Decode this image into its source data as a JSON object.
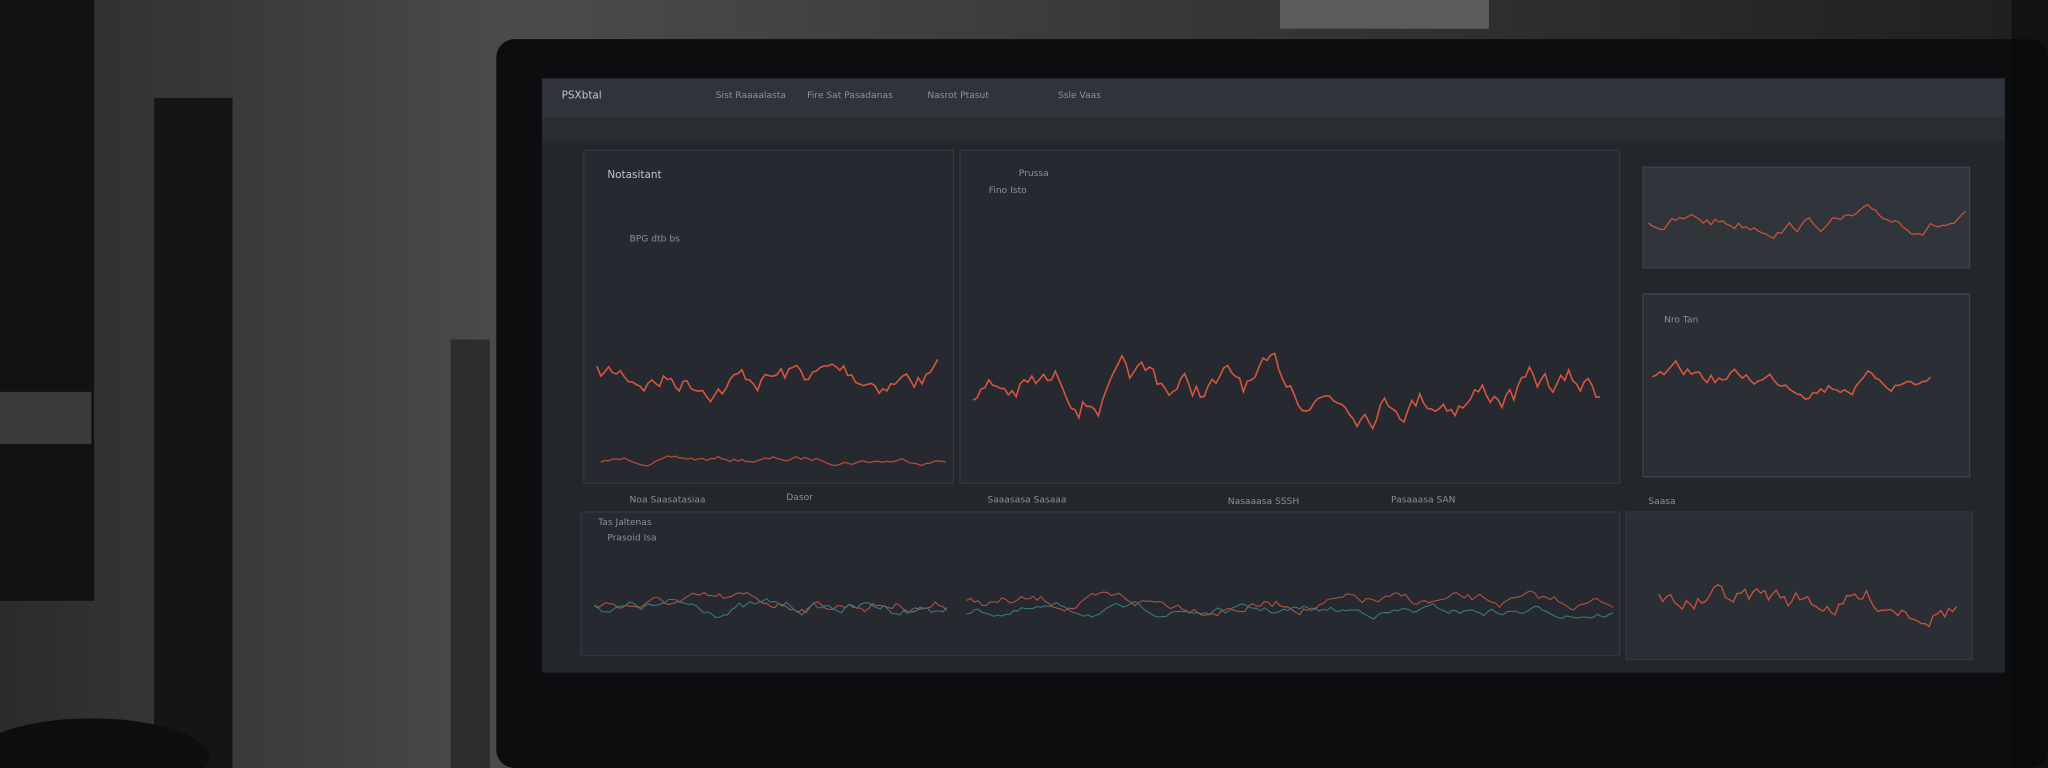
{
  "header": {
    "title": "PSXbtal",
    "tabs": [
      "Sist Raaaalasta",
      "Fire Sat Pasadanas",
      "Nasrot Ptasut",
      "Ssle Vaas"
    ]
  },
  "panels": {
    "top_left": {
      "title": "Notasitant",
      "subtitle": "BPG dtb bs"
    },
    "top_middle": {
      "title": "Prussa",
      "subtitle": "Fino Isto"
    },
    "top_right": {
      "title": "Nro Tan"
    },
    "bottom_left": {
      "title": "Tas Jaltenas",
      "subtitle": "Prasoid Isa"
    },
    "bottom_right": {
      "title": "Saasa"
    }
  },
  "toolbar": [
    "Noa Saasatasiaa",
    "Dasor",
    "Saaasasa Sasaaa",
    "Nasaaasa SSSH",
    "Pasaaasa SAN"
  ]
}
